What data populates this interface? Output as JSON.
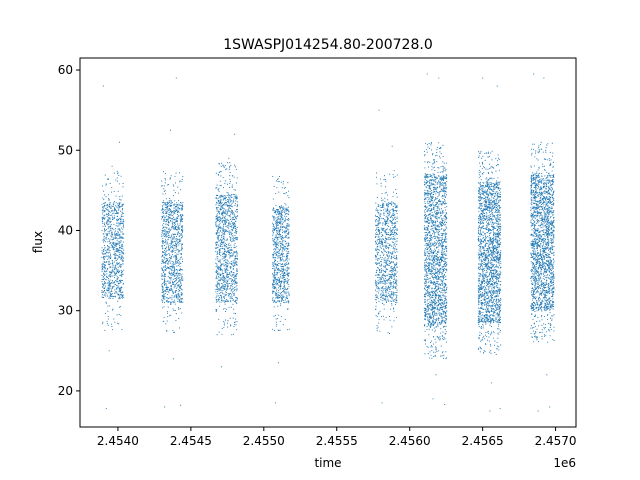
{
  "chart_data": {
    "type": "scatter",
    "title": "1SWASPJ014254.80-200728.0",
    "xlabel": "time",
    "ylabel": "flux",
    "x_offset_label": "1e6",
    "xlim": [
      2453740,
      2457140
    ],
    "ylim": [
      15.5,
      61.5
    ],
    "x_ticks": [
      2454000,
      2454500,
      2455000,
      2455500,
      2456000,
      2456500,
      2457000
    ],
    "x_tick_labels": [
      "2.4540",
      "2.4545",
      "2.4550",
      "2.4555",
      "2.4560",
      "2.4565",
      "2.4570"
    ],
    "y_ticks": [
      20,
      30,
      40,
      50,
      60
    ],
    "y_tick_labels": [
      "20",
      "30",
      "40",
      "50",
      "60"
    ],
    "grid": false,
    "marker_color": "#1f77b4",
    "series": [
      {
        "clusters": [
          {
            "x_range": [
              2453890,
              2454040
            ],
            "core_y": [
              31.5,
              43.5
            ],
            "count": 900
          },
          {
            "x_range": [
              2454300,
              2454445
            ],
            "core_y": [
              31.0,
              43.5
            ],
            "count": 1000
          },
          {
            "x_range": [
              2454670,
              2454820
            ],
            "core_y": [
              31.0,
              44.5
            ],
            "count": 1100
          },
          {
            "x_range": [
              2455060,
              2455175
            ],
            "core_y": [
              31.0,
              43.0
            ],
            "count": 800
          },
          {
            "x_range": [
              2455765,
              2455915
            ],
            "core_y": [
              31.0,
              43.5
            ],
            "count": 900
          },
          {
            "x_range": [
              2456100,
              2456255
            ],
            "core_y": [
              28.0,
              47.0
            ],
            "count": 1800
          },
          {
            "x_range": [
              2456470,
              2456625
            ],
            "core_y": [
              28.5,
              46.0
            ],
            "count": 1900
          },
          {
            "x_range": [
              2456830,
              2456990
            ],
            "core_y": [
              30.0,
              47.0
            ],
            "count": 1900
          }
        ],
        "outliers": [
          [
            2453900,
            58.0
          ],
          [
            2453920,
            17.8
          ],
          [
            2453940,
            25.0
          ],
          [
            2454010,
            51.0
          ],
          [
            2453960,
            48.0
          ],
          [
            2454320,
            18.0
          ],
          [
            2454360,
            52.5
          ],
          [
            2454400,
            59.0
          ],
          [
            2454430,
            18.2
          ],
          [
            2454380,
            24.0
          ],
          [
            2454710,
            23.0
          ],
          [
            2454760,
            49.0
          ],
          [
            2454800,
            52.0
          ],
          [
            2454780,
            27.0
          ],
          [
            2455080,
            18.5
          ],
          [
            2455120,
            46.0
          ],
          [
            2455100,
            23.5
          ],
          [
            2455790,
            55.0
          ],
          [
            2455810,
            18.5
          ],
          [
            2455880,
            50.5
          ],
          [
            2456120,
            59.5
          ],
          [
            2456160,
            19.0
          ],
          [
            2456200,
            59.0
          ],
          [
            2456240,
            18.3
          ],
          [
            2456180,
            22.0
          ],
          [
            2456500,
            59.0
          ],
          [
            2456550,
            17.5
          ],
          [
            2456600,
            58.0
          ],
          [
            2456620,
            17.8
          ],
          [
            2456560,
            21.0
          ],
          [
            2456850,
            59.5
          ],
          [
            2456880,
            17.5
          ],
          [
            2456920,
            59.0
          ],
          [
            2456960,
            18.0
          ],
          [
            2456940,
            22.0
          ]
        ]
      }
    ]
  }
}
